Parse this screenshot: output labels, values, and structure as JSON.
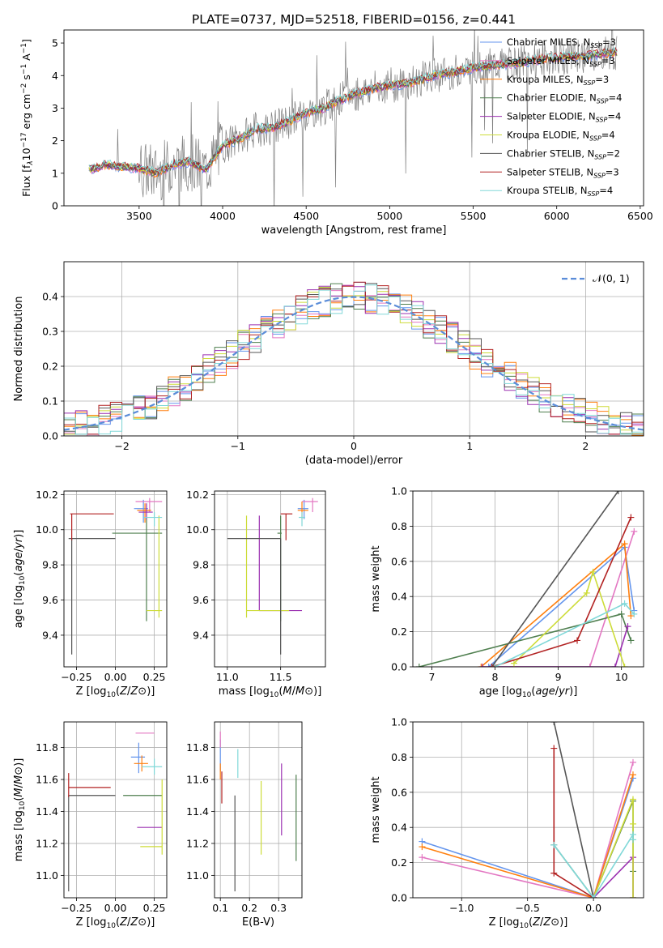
{
  "figure_title": "PLATE=0737, MJD=52518, FIBERID=0156, z=0.441",
  "colors": {
    "chabrier_miles": "#6495ed",
    "salpeter_miles": "#e377c2",
    "kroupa_miles": "#ff7f0e",
    "chabrier_elodie": "#4f7f4f",
    "salpeter_elodie": "#9b30b0",
    "kroupa_elodie": "#cddc39",
    "chabrier_stelib": "#555555",
    "salpeter_stelib": "#b22222",
    "kroupa_stelib": "#80d8d8",
    "gaussian": "#5b8dd9",
    "data": "#808080",
    "grid": "#b0b0b0"
  },
  "chart_data": [
    {
      "id": "spectrum",
      "type": "line",
      "xlabel": "wavelength [Angstrom, rest frame]",
      "ylabel": "Flux [f_λ10^-17 erg cm^-2 s^-1 A^-1]",
      "xlim": [
        3050,
        6520
      ],
      "ylim": [
        0,
        5.4
      ],
      "xticks": [
        3500,
        4000,
        4500,
        5000,
        5500,
        6000,
        6500
      ],
      "yticks": [
        0,
        1,
        2,
        3,
        4,
        5
      ],
      "grid": false,
      "legend_position": "top-right",
      "continuum": [
        [
          3200,
          1.1
        ],
        [
          3300,
          1.25
        ],
        [
          3400,
          1.2
        ],
        [
          3500,
          1.15
        ],
        [
          3600,
          1.0
        ],
        [
          3700,
          1.25
        ],
        [
          3800,
          1.35
        ],
        [
          3900,
          1.1
        ],
        [
          4000,
          1.85
        ],
        [
          4100,
          2.05
        ],
        [
          4200,
          2.35
        ],
        [
          4300,
          2.4
        ],
        [
          4400,
          2.6
        ],
        [
          4500,
          2.85
        ],
        [
          4600,
          3.0
        ],
        [
          4700,
          3.25
        ],
        [
          4800,
          3.45
        ],
        [
          4900,
          3.6
        ],
        [
          5000,
          3.7
        ],
        [
          5100,
          3.75
        ],
        [
          5200,
          3.9
        ],
        [
          5300,
          4.05
        ],
        [
          5400,
          4.1
        ],
        [
          5500,
          4.25
        ],
        [
          5600,
          4.3
        ],
        [
          5700,
          4.35
        ],
        [
          5800,
          4.4
        ],
        [
          5900,
          4.5
        ],
        [
          6000,
          4.55
        ],
        [
          6100,
          4.6
        ],
        [
          6200,
          4.62
        ],
        [
          6300,
          4.68
        ],
        [
          6360,
          4.7
        ]
      ],
      "legend": [
        {
          "label": "Chabrier MILES, N",
          "sub": "SSP",
          "suffix": "=3"
        },
        {
          "label": "Salpeter MILES, N",
          "sub": "SSP",
          "suffix": "=3"
        },
        {
          "label": "Kroupa MILES, N",
          "sub": "SSP",
          "suffix": "=3"
        },
        {
          "label": "Chabrier ELODIE, N",
          "sub": "SSP",
          "suffix": "=4"
        },
        {
          "label": "Salpeter ELODIE, N",
          "sub": "SSP",
          "suffix": "=4"
        },
        {
          "label": "Kroupa ELODIE, N",
          "sub": "SSP",
          "suffix": "=4"
        },
        {
          "label": "Chabrier STELIB, N",
          "sub": "SSP",
          "suffix": "=2"
        },
        {
          "label": "Salpeter STELIB, N",
          "sub": "SSP",
          "suffix": "=3"
        },
        {
          "label": "Kroupa STELIB, N",
          "sub": "SSP",
          "suffix": "=4"
        }
      ]
    },
    {
      "id": "residuals",
      "type": "histogram",
      "xlabel": "(data-model)/error",
      "ylabel": "Normed distribution",
      "xlim": [
        -2.5,
        2.5
      ],
      "ylim": [
        0,
        0.5
      ],
      "xticks": [
        -2,
        -1,
        0,
        1,
        2
      ],
      "yticks": [
        0.0,
        0.1,
        0.2,
        0.3,
        0.4
      ],
      "grid": true,
      "legend_position": "top-right",
      "gaussian_label": "𝒩(0, 1)",
      "bin_width": 0.1
    },
    {
      "id": "age_vs_Z",
      "type": "errorbar",
      "xlabel": "Z [log10(Z/Z⊙)]",
      "ylabel": "age [log10(age/yr)]",
      "xlim": [
        -0.33,
        0.33
      ],
      "ylim": [
        9.22,
        10.22
      ],
      "xticks": [
        -0.25,
        0.0,
        0.25
      ],
      "yticks": [
        9.4,
        9.6,
        9.8,
        10.0,
        10.2
      ],
      "grid": true,
      "points": [
        {
          "model": "chabrier_miles",
          "x": 0.18,
          "xerr": [
            0.06,
            0.03
          ],
          "y": 10.12,
          "yerr": [
            0.08,
            0.05
          ]
        },
        {
          "model": "salpeter_miles",
          "x": 0.22,
          "xerr": [
            0.09,
            0.08
          ],
          "y": 10.16,
          "yerr": [
            0.06,
            0.02
          ]
        },
        {
          "model": "kroupa_miles",
          "x": 0.19,
          "xerr": [
            0.05,
            0.04
          ],
          "y": 10.11,
          "yerr": [
            0.07,
            0.04
          ]
        },
        {
          "model": "chabrier_elodie",
          "x": 0.2,
          "xerr": [
            0.22,
            0.1
          ],
          "y": 9.98,
          "yerr": [
            0.5,
            0.09
          ]
        },
        {
          "model": "salpeter_elodie",
          "x": 0.2,
          "xerr": [
            0.05,
            0.04
          ],
          "y": 10.1,
          "yerr": [
            0.04,
            0.05
          ]
        },
        {
          "model": "kroupa_elodie",
          "x": 0.28,
          "xerr": [
            0.08,
            0.02
          ],
          "y": 9.54,
          "yerr": [
            0.04,
            0.54
          ]
        },
        {
          "model": "chabrier_stelib",
          "x": -0.28,
          "xerr": [
            0.02,
            0.28
          ],
          "y": 9.95,
          "yerr": [
            0.66,
            0.0
          ]
        },
        {
          "model": "salpeter_stelib",
          "x": -0.28,
          "xerr": [
            0.01,
            0.27
          ],
          "y": 10.09,
          "yerr": [
            0.15,
            0.0
          ]
        },
        {
          "model": "kroupa_stelib",
          "x": 0.25,
          "xerr": [
            0.07,
            0.05
          ],
          "y": 10.07,
          "yerr": [
            0.05,
            0.03
          ]
        }
      ]
    },
    {
      "id": "age_vs_mass",
      "type": "errorbar",
      "xlabel": "mass [log10(M/M⊙)]",
      "ylabel": "",
      "xlim": [
        10.88,
        11.92
      ],
      "ylim": [
        9.22,
        10.22
      ],
      "xticks": [
        11.0,
        11.5
      ],
      "yticks": [
        9.4,
        9.6,
        9.8,
        10.0,
        10.2
      ],
      "grid": true,
      "points": [
        {
          "model": "chabrier_miles",
          "x": 11.72,
          "xerr": [
            0.06,
            0.04
          ],
          "y": 10.12,
          "yerr": [
            0.06,
            0.05
          ]
        },
        {
          "model": "salpeter_miles",
          "x": 11.8,
          "xerr": [
            0.1,
            0.05
          ],
          "y": 10.16,
          "yerr": [
            0.06,
            0.02
          ]
        },
        {
          "model": "kroupa_miles",
          "x": 11.7,
          "xerr": [
            0.04,
            0.06
          ],
          "y": 10.11,
          "yerr": [
            0.05,
            0.05
          ]
        },
        {
          "model": "chabrier_elodie",
          "x": 11.5,
          "xerr": [
            0.03,
            0.01
          ],
          "y": 9.98,
          "yerr": [
            0.5,
            0.1
          ]
        },
        {
          "model": "salpeter_elodie",
          "x": 11.3,
          "xerr": [
            0.0,
            0.4
          ],
          "y": 9.54,
          "yerr": [
            0.0,
            0.54
          ]
        },
        {
          "model": "kroupa_elodie",
          "x": 11.18,
          "xerr": [
            0.0,
            0.4
          ],
          "y": 9.54,
          "yerr": [
            0.04,
            0.54
          ]
        },
        {
          "model": "chabrier_stelib",
          "x": 11.5,
          "xerr": [
            0.5,
            0.0
          ],
          "y": 9.95,
          "yerr": [
            0.66,
            0.0
          ]
        },
        {
          "model": "salpeter_stelib",
          "x": 11.55,
          "xerr": [
            0.05,
            0.06
          ],
          "y": 10.09,
          "yerr": [
            0.15,
            0.0
          ]
        },
        {
          "model": "kroupa_stelib",
          "x": 11.7,
          "xerr": [
            0.03,
            0.03
          ],
          "y": 10.07,
          "yerr": [
            0.05,
            0.03
          ]
        }
      ]
    },
    {
      "id": "weight_vs_age",
      "type": "line",
      "xlabel": "age [log10(age/yr)]",
      "ylabel": "mass weight",
      "xlim": [
        6.7,
        10.35
      ],
      "ylim": [
        0,
        1.0
      ],
      "xticks": [
        7,
        8,
        9,
        10
      ],
      "yticks": [
        0.0,
        0.2,
        0.4,
        0.6,
        0.8,
        1.0
      ],
      "grid": true,
      "series": [
        {
          "model": "chabrier_miles",
          "x": [
            7.9,
            10.05,
            10.2
          ],
          "y": [
            0.0,
            0.68,
            0.32
          ]
        },
        {
          "model": "salpeter_miles",
          "x": [
            8.0,
            9.5,
            10.2
          ],
          "y": [
            0.0,
            0.0,
            0.77
          ]
        },
        {
          "model": "kroupa_miles",
          "x": [
            7.78,
            10.05,
            10.15
          ],
          "y": [
            0.0,
            0.7,
            0.29
          ]
        },
        {
          "model": "chabrier_elodie",
          "x": [
            6.8,
            10.0,
            10.15
          ],
          "y": [
            0.0,
            0.3,
            0.15
          ]
        },
        {
          "model": "salpeter_elodie",
          "x": [
            7.8,
            9.9,
            10.1
          ],
          "y": [
            0.0,
            0.0,
            0.23
          ]
        },
        {
          "model": "kroupa_elodie",
          "x": [
            8.3,
            9.45,
            9.55,
            10.05
          ],
          "y": [
            0.02,
            0.42,
            0.54,
            0.0
          ]
        },
        {
          "model": "chabrier_stelib",
          "x": [
            7.95,
            9.95
          ],
          "y": [
            0.0,
            1.0
          ]
        },
        {
          "model": "salpeter_stelib",
          "x": [
            7.95,
            9.3,
            10.15
          ],
          "y": [
            0.0,
            0.15,
            0.85
          ]
        },
        {
          "model": "kroupa_stelib",
          "x": [
            8.0,
            10.05,
            10.2
          ],
          "y": [
            0.0,
            0.36,
            0.3
          ]
        }
      ]
    },
    {
      "id": "mass_vs_Z",
      "type": "errorbar",
      "xlabel": "Z [log10(Z/Z⊙)]",
      "ylabel": "mass [log10(M/M⊙)]",
      "xlim": [
        -0.33,
        0.33
      ],
      "ylim": [
        10.86,
        11.96
      ],
      "xticks": [
        -0.25,
        0.0,
        0.25
      ],
      "yticks": [
        11.0,
        11.2,
        11.4,
        11.6,
        11.8
      ],
      "grid": true,
      "points": [
        {
          "model": "chabrier_miles",
          "x": 0.15,
          "xerr": [
            0.05,
            0.04
          ],
          "y": 11.74,
          "yerr": [
            0.1,
            0.09
          ]
        },
        {
          "model": "salpeter_miles",
          "x": 0.2,
          "xerr": [
            0.07,
            0.05
          ],
          "y": 11.89,
          "yerr": [
            0.0,
            0.0
          ]
        },
        {
          "model": "kroupa_miles",
          "x": 0.17,
          "xerr": [
            0.05,
            0.04
          ],
          "y": 11.7,
          "yerr": [
            0.05,
            0.05
          ]
        },
        {
          "model": "chabrier_elodie",
          "x": 0.3,
          "xerr": [
            0.25,
            0.0
          ],
          "y": 11.5,
          "yerr": [
            0.0,
            0.0
          ]
        },
        {
          "model": "salpeter_elodie",
          "x": 0.18,
          "xerr": [
            0.04,
            0.12
          ],
          "y": 11.3,
          "yerr": [
            0.0,
            0.0
          ]
        },
        {
          "model": "kroupa_elodie",
          "x": 0.3,
          "xerr": [
            0.14,
            0.0
          ],
          "y": 11.18,
          "yerr": [
            0.05,
            0.42
          ]
        },
        {
          "model": "chabrier_stelib",
          "x": -0.3,
          "xerr": [
            0.0,
            0.3
          ],
          "y": 11.5,
          "yerr": [
            0.6,
            0.0
          ]
        },
        {
          "model": "salpeter_stelib",
          "x": -0.3,
          "xerr": [
            0.0,
            0.27
          ],
          "y": 11.55,
          "yerr": [
            0.06,
            0.09
          ]
        },
        {
          "model": "kroupa_stelib",
          "x": 0.25,
          "xerr": [
            0.08,
            0.05
          ],
          "y": 11.68,
          "yerr": [
            0.05,
            0.05
          ]
        }
      ]
    },
    {
      "id": "mass_vs_ebv",
      "type": "errorbar",
      "xlabel": "E(B-V)",
      "ylabel": "",
      "xlim": [
        0.08,
        0.38
      ],
      "ylim": [
        10.86,
        11.96
      ],
      "xticks": [
        0.1,
        0.2,
        0.3
      ],
      "yticks": [
        11.0,
        11.2,
        11.4,
        11.6,
        11.8
      ],
      "grid": true,
      "points": [
        {
          "model": "chabrier_miles",
          "x": 0.1,
          "xerr": [
            0.0,
            0.0
          ],
          "y": 11.75,
          "yerr": [
            0.1,
            0.1
          ]
        },
        {
          "model": "salpeter_miles",
          "x": 0.1,
          "xerr": [
            0.0,
            0.0
          ],
          "y": 11.85,
          "yerr": [
            0.05,
            0.05
          ]
        },
        {
          "model": "kroupa_miles",
          "x": 0.1,
          "xerr": [
            0.0,
            0.0
          ],
          "y": 11.65,
          "yerr": [
            0.05,
            0.05
          ]
        },
        {
          "model": "chabrier_elodie",
          "x": 0.36,
          "xerr": [
            0.0,
            0.0
          ],
          "y": 11.35,
          "yerr": [
            0.26,
            0.28
          ]
        },
        {
          "model": "salpeter_elodie",
          "x": 0.31,
          "xerr": [
            0.0,
            0.0
          ],
          "y": 11.5,
          "yerr": [
            0.25,
            0.2
          ]
        },
        {
          "model": "kroupa_elodie",
          "x": 0.24,
          "xerr": [
            0.0,
            0.0
          ],
          "y": 11.35,
          "yerr": [
            0.22,
            0.24
          ]
        },
        {
          "model": "chabrier_stelib",
          "x": 0.15,
          "xerr": [
            0.0,
            0.0
          ],
          "y": 11.2,
          "yerr": [
            0.3,
            0.3
          ]
        },
        {
          "model": "salpeter_stelib",
          "x": 0.105,
          "xerr": [
            0.0,
            0.0
          ],
          "y": 11.55,
          "yerr": [
            0.1,
            0.1
          ]
        },
        {
          "model": "kroupa_stelib",
          "x": 0.16,
          "xerr": [
            0.0,
            0.0
          ],
          "y": 11.7,
          "yerr": [
            0.09,
            0.09
          ]
        }
      ]
    },
    {
      "id": "weight_vs_Z",
      "type": "line",
      "xlabel": "Z [log10(Z/Z⊙)]",
      "ylabel": "mass weight",
      "xlim": [
        -1.37,
        0.38
      ],
      "ylim": [
        0,
        1.0
      ],
      "xticks": [
        -1.0,
        -0.5,
        0.0
      ],
      "yticks": [
        0.0,
        0.2,
        0.4,
        0.6,
        0.8,
        1.0
      ],
      "grid": true,
      "series": [
        {
          "model": "chabrier_miles",
          "x": [
            -1.3,
            0.0,
            0.3
          ],
          "y": [
            0.32,
            0.0,
            0.68
          ]
        },
        {
          "model": "salpeter_miles",
          "x": [
            -1.3,
            0.0,
            0.3
          ],
          "y": [
            0.23,
            0.0,
            0.77
          ]
        },
        {
          "model": "kroupa_miles",
          "x": [
            -1.3,
            0.0,
            0.3
          ],
          "y": [
            0.29,
            0.0,
            0.7
          ]
        },
        {
          "model": "chabrier_elodie",
          "x": [
            -0.3,
            0.0,
            0.3,
            0.3,
            0.3
          ],
          "y": [
            0.3,
            0.0,
            0.55,
            0.15,
            0.0
          ]
        },
        {
          "model": "salpeter_elodie",
          "x": [
            0.0,
            0.3,
            0.3
          ],
          "y": [
            0.0,
            0.23,
            0.0
          ]
        },
        {
          "model": "kroupa_elodie",
          "x": [
            0.0,
            0.3,
            0.3,
            0.3
          ],
          "y": [
            0.0,
            0.56,
            0.42,
            0.0
          ]
        },
        {
          "model": "chabrier_stelib",
          "x": [
            -0.3,
            0.0
          ],
          "y": [
            1.0,
            0.0
          ]
        },
        {
          "model": "salpeter_stelib",
          "x": [
            -0.3,
            -0.3,
            0.0
          ],
          "y": [
            0.85,
            0.14,
            0.0
          ]
        },
        {
          "model": "kroupa_stelib",
          "x": [
            -0.3,
            0.0,
            0.3,
            0.3
          ],
          "y": [
            0.3,
            0.0,
            0.36,
            0.33
          ]
        }
      ]
    }
  ]
}
